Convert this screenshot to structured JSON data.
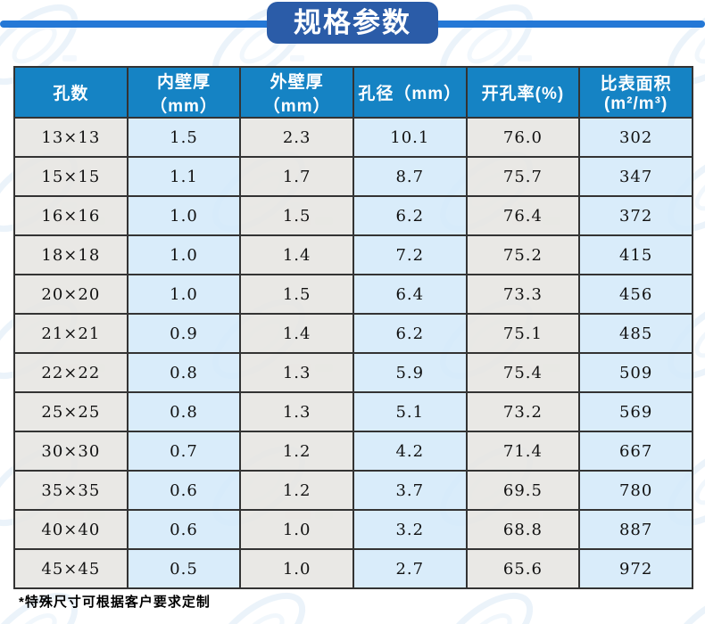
{
  "header": {
    "title": "规格参数"
  },
  "chart_data": {
    "type": "table",
    "title": "规格参数",
    "columns": [
      "孔数",
      "内壁厚（mm）",
      "外壁厚（mm）",
      "孔径（mm）",
      "开孔率(%)",
      "比表面积(m²/m³)"
    ],
    "rows": [
      [
        "13×13",
        "1.5",
        "2.3",
        "10.1",
        "76.0",
        "302"
      ],
      [
        "15×15",
        "1.1",
        "1.7",
        "8.7",
        "75.7",
        "347"
      ],
      [
        "16×16",
        "1.0",
        "1.5",
        "6.2",
        "76.4",
        "372"
      ],
      [
        "18×18",
        "1.0",
        "1.4",
        "7.2",
        "75.2",
        "415"
      ],
      [
        "20×20",
        "1.0",
        "1.5",
        "6.4",
        "73.3",
        "456"
      ],
      [
        "21×21",
        "0.9",
        "1.4",
        "6.2",
        "75.1",
        "485"
      ],
      [
        "22×22",
        "0.8",
        "1.3",
        "5.9",
        "75.4",
        "509"
      ],
      [
        "25×25",
        "0.8",
        "1.3",
        "5.1",
        "73.2",
        "569"
      ],
      [
        "30×30",
        "0.7",
        "1.2",
        "4.2",
        "71.4",
        "667"
      ],
      [
        "35×35",
        "0.6",
        "1.2",
        "3.7",
        "69.5",
        "780"
      ],
      [
        "40×40",
        "0.6",
        "1.0",
        "3.2",
        "68.8",
        "887"
      ],
      [
        "45×45",
        "0.5",
        "1.0",
        "2.7",
        "65.6",
        "972"
      ]
    ]
  },
  "footnote": "*特殊尺寸可根据客户要求定制",
  "colors": {
    "header_bg": "#1583c4",
    "badge_bg": "#2b5ca8",
    "line_color": "#2478d6",
    "cell_blue": "#d5eafae6",
    "cell_gray": "#e7e6e2e6",
    "border_color": "#333333",
    "cell_text": "#111111",
    "header_text": "#ffffff",
    "watermark_ring": "#b5d2ec"
  }
}
